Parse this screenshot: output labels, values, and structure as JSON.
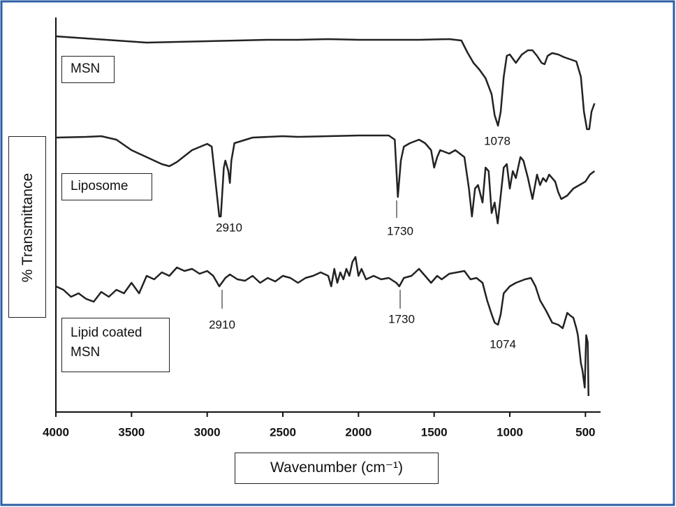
{
  "chart_data": {
    "type": "line",
    "y_label": "% Transmittance",
    "x_label": "Wavenumber (cm⁻¹)",
    "xlim": [
      4000,
      400
    ],
    "xticks": [
      4000,
      3500,
      3000,
      2500,
      2000,
      1500,
      1000,
      500
    ],
    "ylim": [
      0,
      570
    ],
    "series": [
      {
        "name": "MSN",
        "color": "#222222",
        "x": [
          4000,
          3800,
          3600,
          3400,
          3200,
          3000,
          2800,
          2600,
          2400,
          2200,
          2000,
          1800,
          1600,
          1400,
          1320,
          1280,
          1240,
          1200,
          1160,
          1120,
          1100,
          1078,
          1060,
          1040,
          1020,
          1000,
          960,
          920,
          880,
          850,
          820,
          790,
          770,
          750,
          720,
          680,
          640,
          600,
          560,
          530,
          510,
          490,
          475,
          460,
          440
        ],
        "values": [
          538,
          535,
          532,
          529,
          530,
          531,
          532,
          533,
          533,
          534,
          533,
          533,
          533,
          534,
          532,
          515,
          500,
          490,
          478,
          455,
          425,
          410,
          430,
          480,
          510,
          512,
          500,
          512,
          518,
          518,
          510,
          500,
          498,
          510,
          514,
          512,
          508,
          505,
          502,
          480,
          430,
          405,
          405,
          430,
          442
        ]
      },
      {
        "name": "Liposome",
        "color": "#222222",
        "x": [
          4000,
          3800,
          3700,
          3600,
          3500,
          3400,
          3300,
          3250,
          3200,
          3100,
          3000,
          2970,
          2950,
          2920,
          2910,
          2890,
          2880,
          2860,
          2850,
          2840,
          2820,
          2700,
          2500,
          2400,
          2200,
          2000,
          1800,
          1760,
          1740,
          1720,
          1700,
          1660,
          1600,
          1560,
          1520,
          1500,
          1480,
          1460,
          1400,
          1360,
          1300,
          1270,
          1250,
          1230,
          1210,
          1180,
          1160,
          1140,
          1120,
          1100,
          1080,
          1060,
          1040,
          1020,
          1000,
          980,
          960,
          930,
          910,
          880,
          850,
          820,
          800,
          780,
          760,
          740,
          700,
          680,
          660,
          620,
          580,
          540,
          500,
          470,
          440
        ],
        "values": [
          393,
          394,
          395,
          390,
          375,
          365,
          355,
          352,
          358,
          375,
          384,
          380,
          340,
          280,
          280,
          350,
          360,
          345,
          328,
          360,
          385,
          393,
          395,
          394,
          395,
          396,
          396,
          390,
          308,
          360,
          380,
          385,
          390,
          385,
          375,
          350,
          365,
          375,
          370,
          375,
          365,
          320,
          280,
          320,
          325,
          300,
          350,
          345,
          285,
          300,
          270,
          310,
          350,
          355,
          320,
          345,
          335,
          365,
          360,
          335,
          305,
          340,
          325,
          335,
          330,
          340,
          330,
          315,
          305,
          310,
          320,
          325,
          330,
          340,
          345
        ]
      },
      {
        "name": "Lipid coated MSN",
        "color": "#222222",
        "x": [
          4000,
          3950,
          3900,
          3850,
          3800,
          3750,
          3700,
          3650,
          3600,
          3550,
          3500,
          3450,
          3400,
          3350,
          3300,
          3250,
          3200,
          3150,
          3100,
          3050,
          3000,
          2960,
          2920,
          2880,
          2850,
          2800,
          2750,
          2700,
          2650,
          2600,
          2550,
          2500,
          2450,
          2400,
          2350,
          2300,
          2250,
          2200,
          2180,
          2160,
          2140,
          2120,
          2100,
          2080,
          2060,
          2040,
          2020,
          2000,
          1980,
          1950,
          1900,
          1850,
          1800,
          1750,
          1730,
          1700,
          1650,
          1600,
          1560,
          1520,
          1480,
          1450,
          1400,
          1350,
          1300,
          1260,
          1220,
          1180,
          1150,
          1120,
          1100,
          1078,
          1060,
          1040,
          1000,
          960,
          900,
          860,
          830,
          800,
          760,
          720,
          680,
          650,
          620,
          600,
          580,
          560,
          550,
          530,
          520,
          505,
          495,
          485,
          480
        ],
        "values": [
          180,
          175,
          165,
          170,
          162,
          158,
          172,
          165,
          175,
          170,
          185,
          170,
          195,
          190,
          200,
          195,
          207,
          202,
          205,
          198,
          202,
          195,
          180,
          192,
          197,
          190,
          188,
          195,
          185,
          192,
          187,
          195,
          192,
          185,
          192,
          195,
          200,
          195,
          180,
          205,
          185,
          200,
          190,
          205,
          195,
          215,
          222,
          195,
          205,
          190,
          195,
          190,
          192,
          185,
          180,
          192,
          195,
          205,
          195,
          185,
          195,
          190,
          198,
          200,
          202,
          190,
          192,
          185,
          160,
          140,
          128,
          125,
          140,
          170,
          180,
          185,
          190,
          192,
          180,
          160,
          145,
          128,
          125,
          120,
          142,
          138,
          135,
          120,
          110,
          70,
          60,
          35,
          110,
          100,
          23
        ]
      }
    ],
    "annotations": [
      "1078",
      "2910",
      "1730",
      "2910",
      "1730",
      "1074"
    ]
  }
}
